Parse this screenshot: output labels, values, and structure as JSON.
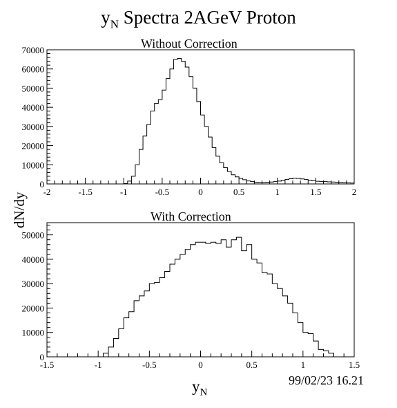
{
  "figure": {
    "title_main": "y",
    "title_sub": "N",
    "title_rest": " Spectra 2AGeV  Proton",
    "ylabel": "dN/dy",
    "xlabel_main": "y",
    "xlabel_sub": "N",
    "timestamp": "99/02/23   16.21"
  },
  "chart_data": [
    {
      "type": "histogram",
      "title": "Without Correction",
      "xlim": [
        -2,
        2
      ],
      "ylim": [
        0,
        70000
      ],
      "xticks": [
        -2,
        -1.5,
        -1,
        -0.5,
        0,
        0.5,
        1,
        1.5,
        2
      ],
      "xtick_labels": [
        "-2",
        "-1.5",
        "-1",
        "-0.5",
        "0",
        "0.5",
        "1",
        "1.5",
        "2"
      ],
      "yticks": [
        0,
        10000,
        20000,
        30000,
        40000,
        50000,
        60000,
        70000
      ],
      "ytick_labels": [
        "0",
        "10000",
        "20000",
        "30000",
        "40000",
        "50000",
        "60000",
        "70000"
      ],
      "bin_width": 0.05,
      "bin_start": -2,
      "values": [
        0,
        0,
        0,
        0,
        0,
        0,
        0,
        0,
        0,
        0,
        0,
        0,
        0,
        0,
        0,
        0,
        0,
        0,
        0,
        0,
        200,
        1500,
        4000,
        10000,
        18000,
        25000,
        31000,
        38000,
        42000,
        44000,
        49000,
        55000,
        60000,
        65000,
        65500,
        64000,
        61000,
        56000,
        50000,
        43000,
        36000,
        30000,
        24500,
        19000,
        14500,
        11000,
        8500,
        6500,
        4800,
        3700,
        2900,
        2200,
        1600,
        1200,
        900,
        800,
        800,
        900,
        1000,
        1200,
        1500,
        1900,
        2300,
        2700,
        3000,
        2900,
        2600,
        2300,
        2000,
        1700,
        1400,
        1300,
        1200,
        1100,
        1000,
        900,
        800,
        700,
        600,
        500
      ]
    },
    {
      "type": "histogram",
      "title": "With Correction",
      "xlim": [
        -1.5,
        1.5
      ],
      "ylim": [
        0,
        55000
      ],
      "xticks": [
        -1.5,
        -1,
        -0.5,
        0,
        0.5,
        1,
        1.5
      ],
      "xtick_labels": [
        "-1.5",
        "-1",
        "-0.5",
        "0",
        "0.5",
        "1",
        "1.5"
      ],
      "yticks": [
        0,
        10000,
        20000,
        30000,
        40000,
        50000
      ],
      "ytick_labels": [
        "0",
        "10000",
        "20000",
        "30000",
        "40000",
        "50000"
      ],
      "bin_width": 0.05,
      "bin_start": -1.5,
      "values": [
        0,
        0,
        0,
        0,
        0,
        0,
        0,
        0,
        0,
        0,
        0,
        1500,
        4000,
        7500,
        11500,
        16000,
        18500,
        23000,
        25000,
        27000,
        30000,
        30500,
        32500,
        35000,
        38000,
        40000,
        42000,
        44000,
        46000,
        47000,
        47000,
        46500,
        47000,
        46500,
        48000,
        45000,
        48000,
        49000,
        43500,
        46000,
        40000,
        38500,
        34500,
        34000,
        30000,
        28000,
        25000,
        22000,
        18000,
        14000,
        10000,
        9500,
        6500,
        3000,
        2500,
        1500,
        0,
        0,
        0,
        0
      ]
    }
  ]
}
